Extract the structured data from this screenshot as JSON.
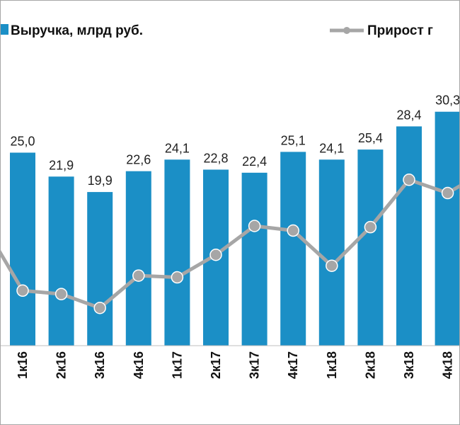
{
  "chart_data": {
    "type": "bar",
    "categories": [
      "1к16",
      "2к16",
      "3к16",
      "4к16",
      "1к17",
      "2к17",
      "3к17",
      "4к17",
      "1к18",
      "2к18",
      "3к18",
      "4к18"
    ],
    "series": [
      {
        "name": "Выручка, млрд руб.",
        "type": "bar",
        "values": [
          25.0,
          21.9,
          19.9,
          22.6,
          24.1,
          22.8,
          22.4,
          25.1,
          24.1,
          25.4,
          28.4,
          30.3
        ],
        "labels": [
          "25,0",
          "21,9",
          "19,9",
          "22,6",
          "24,1",
          "22,8",
          "22,4",
          "25,1",
          "24,1",
          "25,4",
          "28,4",
          "30,3"
        ],
        "color": "#1b8fc6"
      },
      {
        "name": "Прирост г",
        "type": "line",
        "values": [
          -11.2,
          -11.8,
          -14.2,
          -8.6,
          -8.9,
          -5.0,
          0.0,
          -0.8,
          -6.9,
          -0.2,
          8.0,
          5.7
        ],
        "color": "#a6a6a6"
      }
    ],
    "legend_position": "top",
    "grid": false
  }
}
